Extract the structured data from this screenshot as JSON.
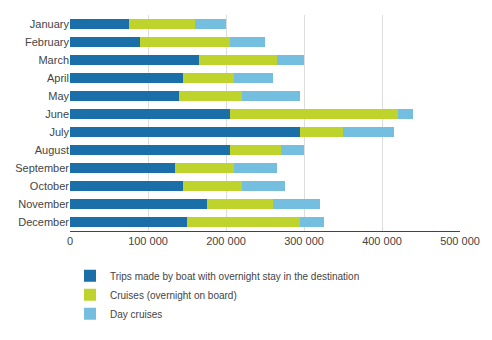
{
  "chart_data": {
    "type": "bar",
    "orientation": "horizontal",
    "stacked": true,
    "categories": [
      "January",
      "February",
      "March",
      "April",
      "May",
      "June",
      "July",
      "August",
      "September",
      "October",
      "November",
      "December"
    ],
    "series": [
      {
        "name": "Trips made by boat with overnight stay in the destination",
        "color": "#1a6fa8",
        "values": [
          75000,
          90000,
          165000,
          145000,
          140000,
          205000,
          295000,
          205000,
          135000,
          145000,
          175000,
          150000
        ]
      },
      {
        "name": "Cruises (overnight on board)",
        "color": "#bed42c",
        "values": [
          85000,
          115000,
          100000,
          65000,
          80000,
          215000,
          55000,
          65000,
          75000,
          75000,
          85000,
          145000
        ]
      },
      {
        "name": "Day cruises",
        "color": "#74bfe0",
        "values": [
          40000,
          45000,
          35000,
          50000,
          75000,
          20000,
          65000,
          30000,
          55000,
          55000,
          60000,
          30000
        ]
      }
    ],
    "xlim": [
      0,
      500000
    ],
    "xticks": [
      0,
      {
        "value": 100000,
        "label": "100 000"
      },
      {
        "value": 200000,
        "label": "200 000"
      },
      {
        "value": 300000,
        "label": "300 000"
      },
      {
        "value": 400000,
        "label": "400 000"
      },
      {
        "value": 500000,
        "label": "500 000"
      }
    ],
    "grid": true,
    "legend": "bottom"
  }
}
